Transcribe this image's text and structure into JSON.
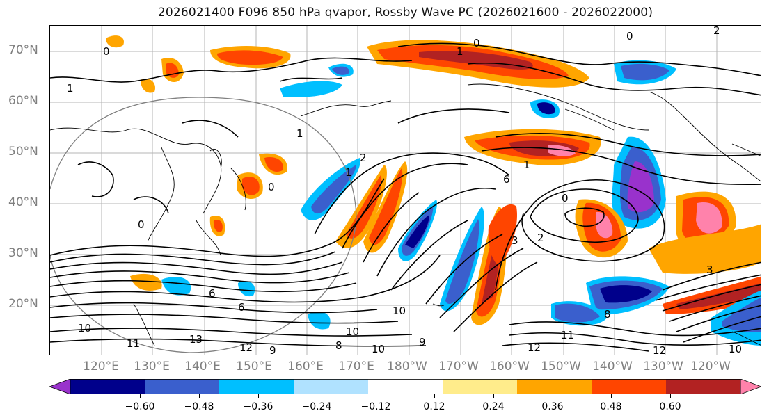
{
  "title": "2026021400 F096 850 hPa qvapor, Rossby Wave PC (2026021600 - 2026022000)",
  "lat_labels": [
    "70°N",
    "60°N",
    "50°N",
    "40°N",
    "30°N",
    "20°N"
  ],
  "lon_labels": [
    "120°E",
    "130°E",
    "140°E",
    "150°E",
    "160°E",
    "170°E",
    "180°W",
    "170°W",
    "160°W",
    "150°W",
    "140°W",
    "130°W",
    "120°W"
  ],
  "colorbar": {
    "colors": [
      "#9932CC",
      "#00008B",
      "#3A5FCD",
      "#00BFFF",
      "#B0E2FF",
      "#FFFFFF",
      "#FFEC8B",
      "#FFA500",
      "#FF4500",
      "#B22222",
      "#FF82AB"
    ],
    "tick_labels": [
      "-0.60",
      "-0.48",
      "-0.36",
      "-0.24",
      "-0.12",
      "0.12",
      "0.24",
      "0.36",
      "0.48",
      "0.60"
    ]
  },
  "contour_labels": [
    "0",
    "1",
    "0",
    "1",
    "0",
    "1",
    "0",
    "2",
    "1",
    "2",
    "6",
    "10",
    "3",
    "0",
    "3",
    "0",
    "6",
    "6",
    "13",
    "12",
    "11",
    "10",
    "10",
    "9",
    "8",
    "10",
    "9",
    "8",
    "11",
    "12",
    "12",
    "10",
    "1",
    "2"
  ]
}
